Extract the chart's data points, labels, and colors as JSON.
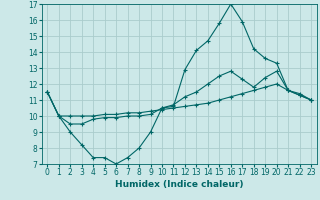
{
  "title": "",
  "xlabel": "Humidex (Indice chaleur)",
  "background_color": "#cce8e8",
  "grid_color": "#aacccc",
  "line_color": "#006666",
  "xlim": [
    -0.5,
    23.5
  ],
  "ylim": [
    7,
    17
  ],
  "xticks": [
    0,
    1,
    2,
    3,
    4,
    5,
    6,
    7,
    8,
    9,
    10,
    11,
    12,
    13,
    14,
    15,
    16,
    17,
    18,
    19,
    20,
    21,
    22,
    23
  ],
  "yticks": [
    7,
    8,
    9,
    10,
    11,
    12,
    13,
    14,
    15,
    16,
    17
  ],
  "series": [
    [
      11.5,
      10.0,
      9.0,
      8.2,
      7.4,
      7.4,
      7.0,
      7.4,
      8.0,
      9.0,
      10.5,
      10.6,
      12.9,
      14.1,
      14.7,
      15.8,
      17.0,
      15.9,
      14.2,
      13.6,
      13.3,
      11.6,
      11.4,
      11.0
    ],
    [
      11.5,
      10.0,
      10.0,
      10.0,
      10.0,
      10.1,
      10.1,
      10.2,
      10.2,
      10.3,
      10.4,
      10.5,
      10.6,
      10.7,
      10.8,
      11.0,
      11.2,
      11.4,
      11.6,
      11.8,
      12.0,
      11.6,
      11.3,
      11.0
    ],
    [
      11.5,
      10.0,
      9.5,
      9.5,
      9.8,
      9.9,
      9.9,
      10.0,
      10.0,
      10.1,
      10.5,
      10.7,
      11.2,
      11.5,
      12.0,
      12.5,
      12.8,
      12.3,
      11.8,
      12.4,
      12.8,
      11.6,
      11.3,
      11.0
    ]
  ],
  "tick_fontsize": 5.5,
  "xlabel_fontsize": 6.5,
  "linewidth": 0.8,
  "markersize": 3.0
}
